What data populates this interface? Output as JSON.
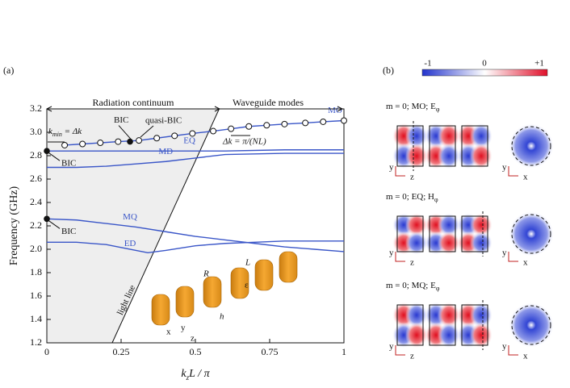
{
  "chart_data": {
    "type": "line",
    "panel_label": "(a)",
    "ylabel": "Frequency (GHz)",
    "xlabel": [
      "k",
      "z",
      "L / π"
    ],
    "xlim": [
      0,
      1
    ],
    "xticks": [
      0,
      0.25,
      0.5,
      0.75,
      1
    ],
    "ylim": [
      1.2,
      3.2
    ],
    "yticks": [
      1.2,
      1.4,
      1.6,
      1.8,
      {
        "value": 2,
        "label": "2.0"
      },
      2.2,
      2.4,
      2.6,
      2.8,
      {
        "value": 3,
        "label": "3.0"
      },
      3.2
    ],
    "series": [
      {
        "name": "MO",
        "color": "#3a56c8",
        "markers": true,
        "x": [
          0.06,
          0.12,
          0.18,
          0.24,
          0.31,
          0.37,
          0.43,
          0.49,
          0.56,
          0.62,
          0.68,
          0.74,
          0.8,
          0.87,
          0.93,
          1.0
        ],
        "values": [
          2.89,
          2.9,
          2.91,
          2.92,
          2.93,
          2.95,
          2.97,
          2.99,
          3.01,
          3.03,
          3.05,
          3.06,
          3.07,
          3.08,
          3.09,
          3.1
        ]
      },
      {
        "name": "EQ",
        "color": "#3a56c8",
        "x": [
          0,
          0.2,
          0.4,
          0.6,
          0.8,
          1
        ],
        "values": [
          2.84,
          2.84,
          2.84,
          2.84,
          2.85,
          2.85
        ]
      },
      {
        "name": "MD",
        "color": "#3a56c8",
        "x": [
          0,
          0.1,
          0.2,
          0.3,
          0.4,
          0.5,
          0.6,
          0.8,
          1
        ],
        "values": [
          2.7,
          2.7,
          2.71,
          2.73,
          2.75,
          2.78,
          2.81,
          2.82,
          2.82
        ]
      },
      {
        "name": "MQ",
        "color": "#3a56c8",
        "x": [
          0,
          0.1,
          0.2,
          0.3,
          0.4,
          0.5,
          0.6,
          0.7,
          0.8,
          0.9,
          1
        ],
        "values": [
          2.26,
          2.25,
          2.22,
          2.19,
          2.15,
          2.11,
          2.08,
          2.05,
          2.02,
          2.0,
          1.98
        ]
      },
      {
        "name": "ED",
        "color": "#3a56c8",
        "x": [
          0,
          0.1,
          0.2,
          0.3,
          0.34,
          0.4,
          0.5,
          0.6,
          0.7,
          0.8,
          1
        ],
        "values": [
          2.06,
          2.06,
          2.04,
          1.99,
          1.97,
          1.99,
          2.03,
          2.05,
          2.06,
          2.07,
          2.07
        ]
      }
    ],
    "bic_points": {
      "label": "BIC",
      "x": [
        0,
        0,
        0.28
      ],
      "values": [
        2.84,
        2.26,
        2.92
      ]
    },
    "light_line": {
      "label": "light line",
      "x": [
        0.22,
        0.58
      ],
      "values": [
        1.2,
        3.2
      ]
    },
    "annotations": {
      "radiation": "Radiation continuum",
      "waveguide": "Waveguide modes",
      "quasi_bic": "quasi-BIC",
      "kmin": [
        "k",
        "min",
        " = Δk"
      ],
      "dk": "Δk = π/(NL)",
      "inset": [
        "R",
        "L",
        "h",
        "ε",
        "x",
        "y",
        "z"
      ]
    }
  },
  "panel_b": {
    "label": "(b)",
    "colorbar": [
      "-1",
      "0",
      "+1"
    ],
    "rows": [
      {
        "title": [
          "m = 0; MO; E",
          "φ"
        ],
        "axes": [
          "y",
          "z",
          "y",
          "x"
        ]
      },
      {
        "title": [
          "m = 0; EQ; H",
          "φ"
        ],
        "axes": [
          "y",
          "z",
          "y",
          "x"
        ]
      },
      {
        "title": [
          "m = 0; MQ; E",
          "φ"
        ],
        "axes": [
          "y",
          "z",
          "y",
          "x"
        ]
      }
    ]
  }
}
